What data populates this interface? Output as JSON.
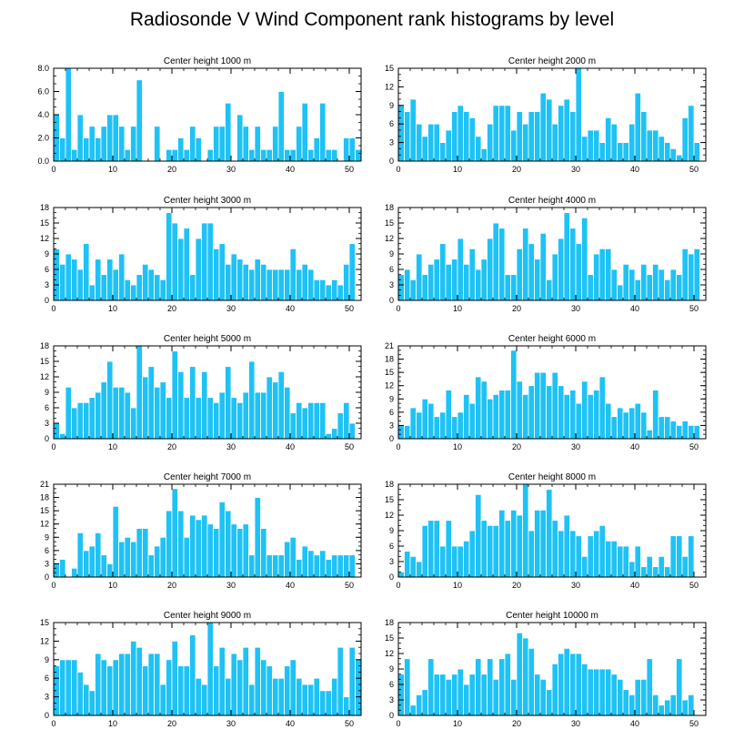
{
  "title": "Radiosonde V Wind Component rank histograms by level",
  "colors": {
    "bar": "#1ec2f5",
    "bar_edge": "#ffffff",
    "axis": "#000000"
  },
  "chart_data": [
    {
      "type": "bar",
      "title": "Center height 1000 m",
      "xlim": [
        0,
        52
      ],
      "ylim": [
        0,
        8
      ],
      "xticks": [
        0,
        10,
        20,
        30,
        40,
        50
      ],
      "yticks": [
        0,
        2,
        4,
        6,
        8
      ],
      "yticklabels": [
        "0.0",
        "2.0",
        "4.0",
        "6.0",
        "8.0"
      ],
      "values": [
        4,
        2,
        8,
        1,
        4,
        2,
        3,
        2,
        3,
        4,
        4,
        3,
        1,
        3,
        7,
        0,
        0,
        3,
        0,
        1,
        1,
        2,
        1,
        3,
        2,
        0,
        1,
        3,
        3,
        5,
        0,
        4,
        3,
        1,
        3,
        1,
        1,
        3,
        6,
        1,
        1,
        3,
        5,
        1,
        2,
        5,
        1,
        1,
        0,
        2,
        2,
        1
      ]
    },
    {
      "type": "bar",
      "title": "Center height 2000 m",
      "xlim": [
        0,
        52
      ],
      "ylim": [
        0,
        15
      ],
      "xticks": [
        0,
        10,
        20,
        30,
        40,
        50
      ],
      "yticks": [
        0,
        3,
        6,
        9,
        12,
        15
      ],
      "yticklabels": [
        "0",
        "3",
        "6",
        "9",
        "12",
        "15"
      ],
      "values": [
        9,
        8,
        10,
        6,
        4,
        6,
        6,
        3,
        5,
        8,
        9,
        8,
        7,
        4,
        2,
        6,
        9,
        9,
        9,
        5,
        8,
        6,
        8,
        8,
        11,
        10,
        6,
        9,
        10,
        8,
        15,
        4,
        5,
        5,
        3,
        7,
        6,
        3,
        3,
        6,
        11,
        8,
        5,
        5,
        4,
        3,
        2,
        1,
        7,
        9,
        3,
        0
      ]
    },
    {
      "type": "bar",
      "title": "Center height 3000 m",
      "xlim": [
        0,
        52
      ],
      "ylim": [
        0,
        18
      ],
      "xticks": [
        0,
        10,
        20,
        30,
        40,
        50
      ],
      "yticks": [
        0,
        3,
        6,
        9,
        12,
        15,
        18
      ],
      "yticklabels": [
        "0",
        "3",
        "6",
        "9",
        "12",
        "15",
        "18"
      ],
      "values": [
        10,
        7,
        9,
        8,
        6,
        11,
        3,
        8,
        5,
        8,
        6,
        9,
        4,
        3,
        5,
        7,
        6,
        5,
        4,
        17,
        15,
        12,
        14,
        5,
        12,
        15,
        15,
        10,
        11,
        7,
        9,
        8,
        7,
        6,
        8,
        7,
        6,
        6,
        6,
        6,
        10,
        6,
        7,
        6,
        4,
        4,
        3,
        4,
        3,
        7,
        11,
        0
      ]
    },
    {
      "type": "bar",
      "title": "Center height 4000 m",
      "xlim": [
        0,
        52
      ],
      "ylim": [
        0,
        18
      ],
      "xticks": [
        0,
        10,
        20,
        30,
        40,
        50
      ],
      "yticks": [
        0,
        3,
        6,
        9,
        12,
        15,
        18
      ],
      "yticklabels": [
        "0",
        "3",
        "6",
        "9",
        "12",
        "15",
        "18"
      ],
      "values": [
        5,
        6,
        4,
        9,
        5,
        7,
        8,
        11,
        7,
        8,
        12,
        7,
        10,
        6,
        8,
        12,
        15,
        14,
        5,
        5,
        10,
        14,
        11,
        8,
        13,
        4,
        9,
        12,
        17,
        14,
        11,
        16,
        5,
        9,
        10,
        10,
        6,
        3,
        7,
        6,
        4,
        7,
        5,
        7,
        6,
        4,
        6,
        5,
        10,
        9,
        10,
        0
      ]
    },
    {
      "type": "bar",
      "title": "Center height 5000 m",
      "xlim": [
        0,
        52
      ],
      "ylim": [
        0,
        18
      ],
      "xticks": [
        0,
        10,
        20,
        30,
        40,
        50
      ],
      "yticks": [
        0,
        3,
        6,
        9,
        12,
        15,
        18
      ],
      "yticklabels": [
        "0",
        "3",
        "6",
        "9",
        "12",
        "15",
        "18"
      ],
      "values": [
        3,
        1,
        10,
        6,
        7,
        7,
        8,
        9,
        11,
        15,
        10,
        10,
        9,
        6,
        18,
        12,
        14,
        10,
        11,
        8,
        17,
        13,
        8,
        14,
        8,
        13,
        8,
        7,
        9,
        14,
        8,
        7,
        9,
        15,
        9,
        9,
        12,
        11,
        13,
        10,
        5,
        7,
        6,
        7,
        7,
        7,
        1,
        2,
        5,
        7,
        3,
        0
      ]
    },
    {
      "type": "bar",
      "title": "Center height 6000 m",
      "xlim": [
        0,
        52
      ],
      "ylim": [
        0,
        21
      ],
      "xticks": [
        0,
        10,
        20,
        30,
        40,
        50
      ],
      "yticks": [
        0,
        3,
        6,
        9,
        12,
        15,
        18,
        21
      ],
      "yticklabels": [
        "0",
        "3",
        "6",
        "9",
        "12",
        "15",
        "18",
        "21"
      ],
      "values": [
        3,
        3,
        7,
        6,
        9,
        8,
        5,
        6,
        11,
        5,
        6,
        10,
        8,
        14,
        13,
        9,
        10,
        11,
        11,
        20,
        13,
        10,
        12,
        15,
        15,
        12,
        15,
        12,
        10,
        11,
        8,
        13,
        10,
        11,
        14,
        8,
        5,
        7,
        6,
        7,
        8,
        6,
        2,
        11,
        5,
        5,
        4,
        3,
        4,
        3,
        3,
        0
      ]
    },
    {
      "type": "bar",
      "title": "Center height 7000 m",
      "xlim": [
        0,
        52
      ],
      "ylim": [
        0,
        21
      ],
      "xticks": [
        0,
        10,
        20,
        30,
        40,
        50
      ],
      "yticks": [
        0,
        3,
        6,
        9,
        12,
        15,
        18,
        21
      ],
      "yticklabels": [
        "0",
        "3",
        "6",
        "9",
        "12",
        "15",
        "18",
        "21"
      ],
      "values": [
        3,
        4,
        0,
        2,
        10,
        6,
        7,
        10,
        5,
        3,
        16,
        8,
        9,
        8,
        11,
        11,
        5,
        7,
        9,
        15,
        20,
        15,
        9,
        14,
        13,
        14,
        12,
        11,
        17,
        15,
        12,
        11,
        12,
        5,
        18,
        11,
        5,
        5,
        5,
        8,
        9,
        4,
        7,
        6,
        5,
        6,
        4,
        5,
        5,
        5,
        5,
        0
      ]
    },
    {
      "type": "bar",
      "title": "Center height 8000 m",
      "xlim": [
        0,
        52
      ],
      "ylim": [
        0,
        18
      ],
      "xticks": [
        0,
        10,
        20,
        30,
        40,
        50
      ],
      "yticks": [
        0,
        3,
        6,
        9,
        12,
        15,
        18
      ],
      "yticklabels": [
        "0",
        "3",
        "6",
        "9",
        "12",
        "15",
        "18"
      ],
      "values": [
        1,
        5,
        4,
        3,
        10,
        11,
        11,
        6,
        11,
        6,
        6,
        7,
        9,
        16,
        11,
        10,
        10,
        13,
        11,
        13,
        12,
        18,
        9,
        13,
        13,
        17,
        11,
        9,
        12,
        9,
        8,
        4,
        8,
        9,
        10,
        7,
        7,
        6,
        6,
        3,
        6,
        2,
        4,
        2,
        4,
        2,
        8,
        8,
        4,
        8,
        0,
        0
      ]
    },
    {
      "type": "bar",
      "title": "Center height 9000 m",
      "xlim": [
        0,
        52
      ],
      "ylim": [
        0,
        15
      ],
      "xticks": [
        0,
        10,
        20,
        30,
        40,
        50
      ],
      "yticks": [
        0,
        3,
        6,
        9,
        12,
        15
      ],
      "yticklabels": [
        "0",
        "3",
        "6",
        "9",
        "12",
        "15"
      ],
      "values": [
        8,
        9,
        9,
        9,
        7,
        5,
        4,
        10,
        9,
        8,
        9,
        10,
        10,
        12,
        11,
        8,
        10,
        10,
        5,
        9,
        12,
        8,
        8,
        13,
        6,
        5,
        15,
        8,
        11,
        6,
        10,
        9,
        11,
        5,
        11,
        9,
        8,
        6,
        6,
        8,
        9,
        6,
        5,
        5,
        6,
        4,
        4,
        6,
        11,
        3,
        11,
        9
      ]
    },
    {
      "type": "bar",
      "title": "Center height 10000 m",
      "xlim": [
        0,
        52
      ],
      "ylim": [
        0,
        18
      ],
      "xticks": [
        0,
        10,
        20,
        30,
        40,
        50
      ],
      "yticks": [
        0,
        3,
        6,
        9,
        12,
        15,
        18
      ],
      "yticklabels": [
        "0",
        "3",
        "6",
        "9",
        "12",
        "15",
        "18"
      ],
      "values": [
        8,
        11,
        2,
        4,
        5,
        11,
        8,
        8,
        7,
        8,
        9,
        6,
        8,
        11,
        8,
        11,
        7,
        11,
        12,
        7,
        16,
        15,
        13,
        8,
        7,
        5,
        10,
        12,
        13,
        12,
        12,
        10,
        9,
        9,
        9,
        9,
        8,
        7,
        5,
        4,
        7,
        7,
        11,
        4,
        2,
        3,
        4,
        11,
        3,
        4,
        0,
        0
      ]
    }
  ]
}
